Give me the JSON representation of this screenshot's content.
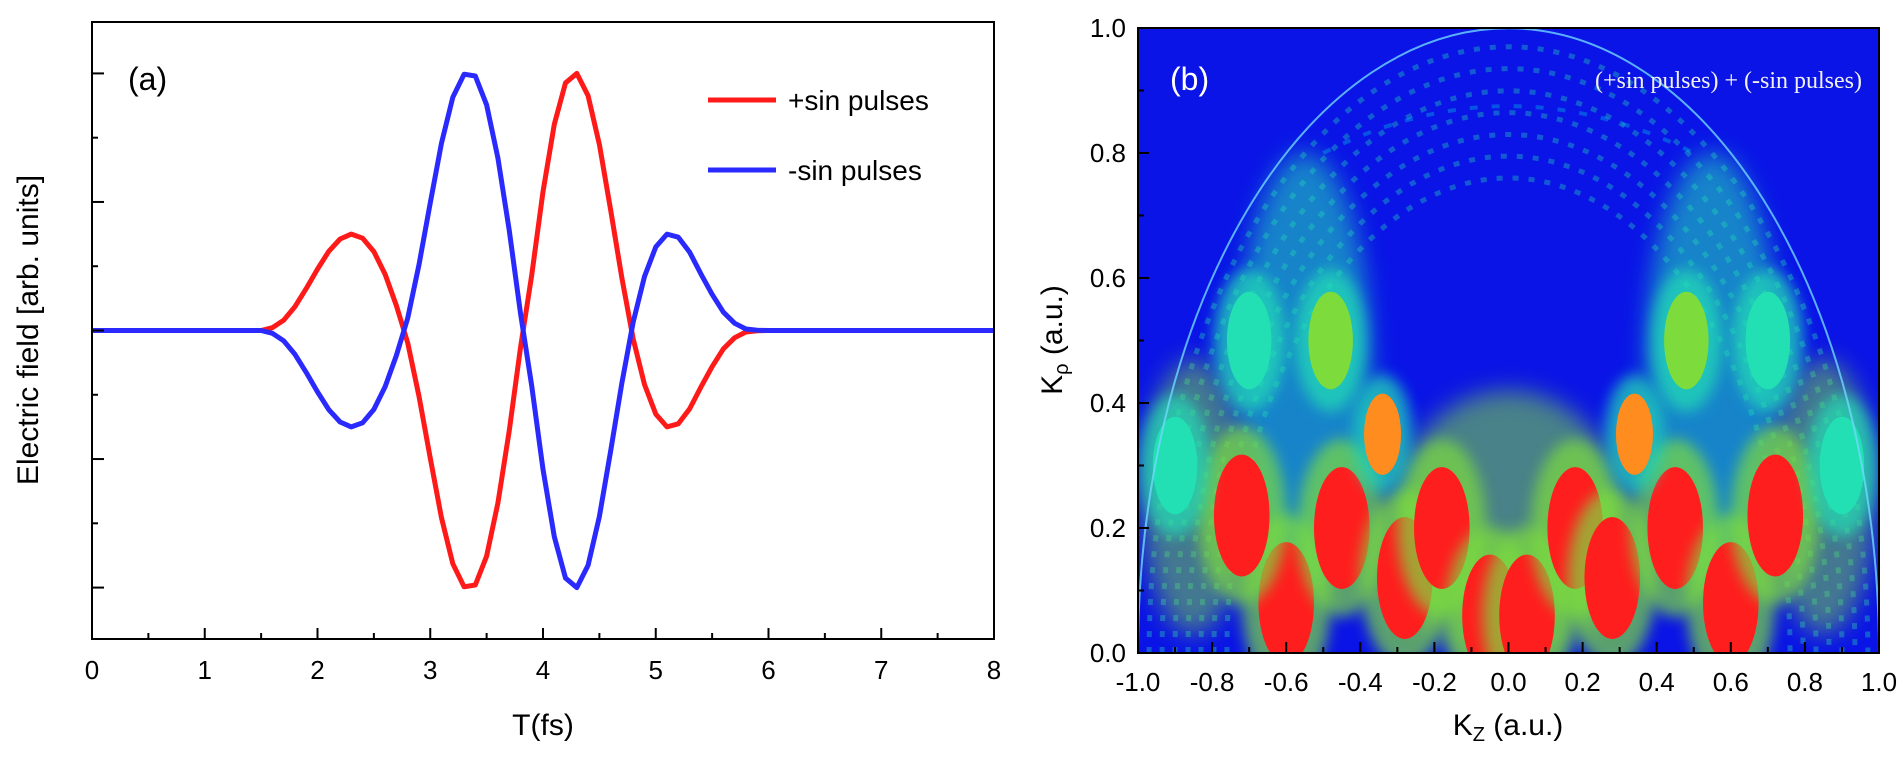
{
  "figure": {
    "panels": [
      "(a)",
      "(b)"
    ]
  },
  "colors": {
    "red": "#ff1a1a",
    "blue": "#2a2aff",
    "map_background": "#0a14e6",
    "map_levels": [
      "#0a14e6",
      "#00c8e6",
      "#23e0b4",
      "#7ddc3c",
      "#e8e632",
      "#ff8c1e",
      "#ff1e1e"
    ]
  },
  "chart_data": [
    {
      "id": "a",
      "type": "line",
      "panel_label": "(a)",
      "title": "",
      "xlabel": "T(fs)",
      "ylabel": "Electric field [arb. units]",
      "xlim": [
        0,
        8
      ],
      "ylim": [
        -1.2,
        1.2
      ],
      "x_ticks": [
        0,
        1,
        2,
        3,
        4,
        5,
        6,
        7,
        8
      ],
      "x_minor_step": 0.5,
      "y_ticks": [
        -1.0,
        -0.5,
        0.0,
        0.5,
        1.0
      ],
      "y_minor_ticks": [
        -0.75,
        -0.25,
        0.25,
        0.75
      ],
      "y_tick_labels_shown": false,
      "grid": false,
      "legend_position": "top-right",
      "series": [
        {
          "name": "+sin pulses",
          "color": "#ff1a1a",
          "x": [
            0,
            1.5,
            1.6,
            1.7,
            1.8,
            1.9,
            2.0,
            2.1,
            2.2,
            2.3,
            2.4,
            2.5,
            2.6,
            2.7,
            2.8,
            2.9,
            3.0,
            3.1,
            3.2,
            3.3,
            3.4,
            3.5,
            3.6,
            3.7,
            3.8,
            3.9,
            4.0,
            4.1,
            4.2,
            4.3,
            4.4,
            4.5,
            4.6,
            4.7,
            4.8,
            4.9,
            5.0,
            5.1,
            5.2,
            5.3,
            5.4,
            5.5,
            5.6,
            5.7,
            5.8,
            5.9,
            6.0,
            6.1,
            6.2,
            6.3,
            6.4,
            6.5,
            8.0
          ],
          "y": [
            0,
            0,
            0.011,
            0.04,
            0.093,
            0.163,
            0.239,
            0.308,
            0.356,
            0.375,
            0.359,
            0.307,
            0.218,
            0.097,
            -0.048,
            -0.256,
            -0.497,
            -0.729,
            -0.907,
            -0.997,
            -0.99,
            -0.878,
            -0.671,
            -0.391,
            -0.067,
            0.215,
            0.54,
            0.802,
            0.963,
            1.0,
            0.913,
            0.723,
            0.47,
            0.204,
            -0.033,
            -0.21,
            -0.325,
            -0.375,
            -0.363,
            -0.305,
            -0.22,
            -0.141,
            -0.071,
            -0.028,
            -0.006,
            -0.001,
            0,
            0,
            0,
            0,
            0,
            0,
            0
          ]
        },
        {
          "name": "-sin pulses",
          "color": "#2a2aff",
          "x": [
            0,
            1.5,
            1.6,
            1.7,
            1.8,
            1.9,
            2.0,
            2.1,
            2.2,
            2.3,
            2.4,
            2.5,
            2.6,
            2.7,
            2.8,
            2.9,
            3.0,
            3.1,
            3.2,
            3.3,
            3.4,
            3.5,
            3.6,
            3.7,
            3.8,
            3.9,
            4.0,
            4.1,
            4.2,
            4.3,
            4.4,
            4.5,
            4.6,
            4.7,
            4.8,
            4.9,
            5.0,
            5.1,
            5.2,
            5.3,
            5.4,
            5.5,
            5.6,
            5.7,
            5.8,
            5.9,
            6.0,
            6.1,
            6.2,
            6.3,
            6.4,
            6.5,
            8.0
          ],
          "y": [
            0,
            0,
            -0.011,
            -0.04,
            -0.093,
            -0.163,
            -0.239,
            -0.308,
            -0.356,
            -0.375,
            -0.359,
            -0.307,
            -0.218,
            -0.097,
            0.048,
            0.256,
            0.497,
            0.729,
            0.907,
            0.997,
            0.99,
            0.878,
            0.671,
            0.391,
            0.067,
            -0.215,
            -0.54,
            -0.802,
            -0.963,
            -1.0,
            -0.913,
            -0.723,
            -0.47,
            -0.204,
            0.033,
            0.21,
            0.325,
            0.375,
            0.363,
            0.305,
            0.22,
            0.141,
            0.071,
            0.028,
            0.006,
            0.001,
            0,
            0,
            0,
            0,
            0,
            0,
            0
          ]
        }
      ]
    },
    {
      "id": "b",
      "type": "heatmap",
      "panel_label": "(b)",
      "title": "",
      "annotation": "(+sin pulses) + (-sin pulses)",
      "xlabel": "K",
      "xlabel_sub": "Z",
      "xlabel_unit": " (a.u.)",
      "ylabel": "K",
      "ylabel_sub": "ρ",
      "ylabel_unit": " (a.u.)",
      "xlim": [
        -1.0,
        1.0
      ],
      "ylim": [
        0.0,
        1.0
      ],
      "x_ticks": [
        -1.0,
        -0.8,
        -0.6,
        -0.4,
        -0.2,
        0.0,
        0.2,
        0.4,
        0.6,
        0.8,
        1.0
      ],
      "y_ticks": [
        0.0,
        0.2,
        0.4,
        0.6,
        0.8,
        1.0
      ],
      "x_minor_step": 0.1,
      "y_minor_step": 0.1,
      "grid": false,
      "boundary": "unit circle k_z^2 + k_rho^2 = 1",
      "high_intensity_lobes": [
        {
          "kz": -0.6,
          "krho": 0.08,
          "level": 6
        },
        {
          "kz": -0.45,
          "krho": 0.2,
          "level": 6
        },
        {
          "kz": -0.28,
          "krho": 0.12,
          "level": 6
        },
        {
          "kz": -0.18,
          "krho": 0.2,
          "level": 6
        },
        {
          "kz": -0.05,
          "krho": 0.06,
          "level": 6
        },
        {
          "kz": 0.05,
          "krho": 0.06,
          "level": 6
        },
        {
          "kz": 0.18,
          "krho": 0.2,
          "level": 6
        },
        {
          "kz": 0.28,
          "krho": 0.12,
          "level": 6
        },
        {
          "kz": 0.45,
          "krho": 0.2,
          "level": 6
        },
        {
          "kz": 0.6,
          "krho": 0.08,
          "level": 6
        },
        {
          "kz": -0.72,
          "krho": 0.22,
          "level": 6
        },
        {
          "kz": 0.72,
          "krho": 0.22,
          "level": 6
        },
        {
          "kz": -0.34,
          "krho": 0.35,
          "level": 5
        },
        {
          "kz": 0.34,
          "krho": 0.35,
          "level": 5
        },
        {
          "kz": -0.48,
          "krho": 0.5,
          "level": 3
        },
        {
          "kz": 0.48,
          "krho": 0.5,
          "level": 3
        },
        {
          "kz": -0.7,
          "krho": 0.5,
          "level": 2
        },
        {
          "kz": 0.7,
          "krho": 0.5,
          "level": 2
        },
        {
          "kz": -0.9,
          "krho": 0.3,
          "level": 2
        },
        {
          "kz": 0.9,
          "krho": 0.3,
          "level": 2
        }
      ]
    }
  ]
}
